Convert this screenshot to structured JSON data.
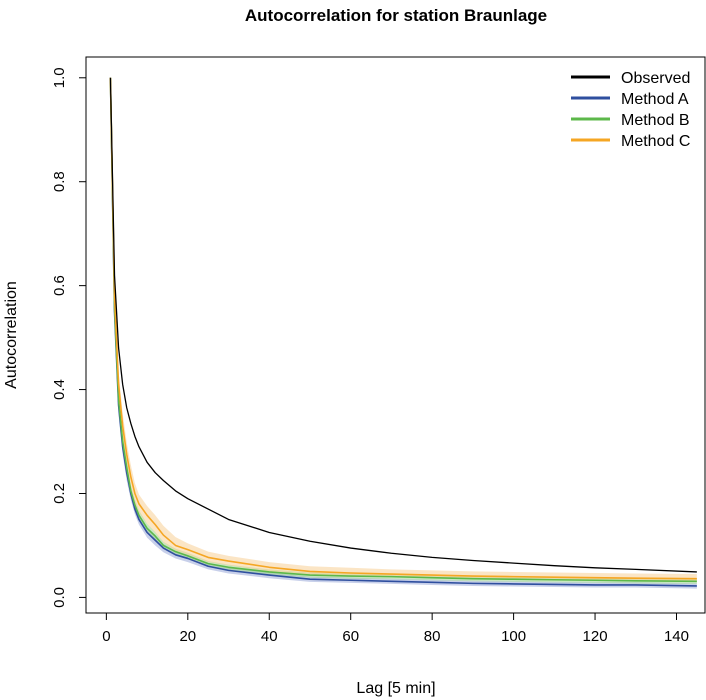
{
  "chart_data": {
    "type": "line",
    "title": "Autocorrelation for station Braunlage",
    "xlabel": "Lag [5 min]",
    "ylabel": "Autocorrelation",
    "xlim": [
      -5,
      147
    ],
    "ylim": [
      -0.03,
      1.04
    ],
    "xticks": [
      0,
      20,
      40,
      60,
      80,
      100,
      120,
      140
    ],
    "yticks": [
      0.0,
      0.2,
      0.4,
      0.6,
      0.8,
      1.0
    ],
    "xtick_labels": [
      "0",
      "20",
      "40",
      "60",
      "80",
      "100",
      "120",
      "140"
    ],
    "ytick_labels": [
      "0.0",
      "0.2",
      "0.4",
      "0.6",
      "0.8",
      "1.0"
    ],
    "legend_position": "top-right",
    "grid": false,
    "x": [
      1,
      2,
      3,
      4,
      5,
      6,
      7,
      8,
      10,
      12,
      14,
      17,
      20,
      25,
      30,
      40,
      50,
      60,
      70,
      80,
      90,
      100,
      110,
      120,
      130,
      145
    ],
    "series": [
      {
        "name": "Observed",
        "color": "#000000",
        "values": [
          1.0,
          0.62,
          0.48,
          0.41,
          0.365,
          0.335,
          0.31,
          0.29,
          0.26,
          0.24,
          0.225,
          0.205,
          0.19,
          0.17,
          0.15,
          0.125,
          0.108,
          0.095,
          0.085,
          0.077,
          0.071,
          0.066,
          0.061,
          0.057,
          0.054,
          0.049
        ]
      },
      {
        "name": "Method A",
        "color": "#2f4f9f",
        "band_color": "#9aaad9",
        "values": [
          1.0,
          0.55,
          0.37,
          0.29,
          0.24,
          0.2,
          0.17,
          0.15,
          0.125,
          0.11,
          0.095,
          0.082,
          0.075,
          0.06,
          0.052,
          0.043,
          0.035,
          0.033,
          0.031,
          0.029,
          0.027,
          0.026,
          0.025,
          0.024,
          0.024,
          0.022
        ],
        "lower": [
          1.0,
          0.53,
          0.35,
          0.275,
          0.225,
          0.188,
          0.16,
          0.14,
          0.115,
          0.1,
          0.087,
          0.075,
          0.068,
          0.054,
          0.046,
          0.037,
          0.03,
          0.028,
          0.026,
          0.024,
          0.022,
          0.021,
          0.02,
          0.019,
          0.019,
          0.017
        ],
        "upper": [
          1.0,
          0.57,
          0.39,
          0.305,
          0.255,
          0.212,
          0.18,
          0.16,
          0.135,
          0.12,
          0.103,
          0.089,
          0.082,
          0.066,
          0.058,
          0.049,
          0.04,
          0.038,
          0.036,
          0.034,
          0.032,
          0.031,
          0.03,
          0.029,
          0.029,
          0.027
        ]
      },
      {
        "name": "Method B",
        "color": "#5cb84a",
        "band_color": "#9fd68f",
        "values": [
          1.0,
          0.56,
          0.38,
          0.3,
          0.25,
          0.205,
          0.178,
          0.158,
          0.133,
          0.118,
          0.1,
          0.088,
          0.08,
          0.065,
          0.058,
          0.049,
          0.043,
          0.041,
          0.04,
          0.038,
          0.036,
          0.035,
          0.034,
          0.033,
          0.032,
          0.031
        ],
        "lower": [
          1.0,
          0.54,
          0.36,
          0.285,
          0.235,
          0.193,
          0.167,
          0.148,
          0.124,
          0.11,
          0.093,
          0.082,
          0.074,
          0.06,
          0.053,
          0.044,
          0.038,
          0.036,
          0.035,
          0.033,
          0.031,
          0.03,
          0.029,
          0.028,
          0.027,
          0.026
        ],
        "upper": [
          1.0,
          0.58,
          0.4,
          0.315,
          0.265,
          0.217,
          0.189,
          0.168,
          0.142,
          0.126,
          0.107,
          0.094,
          0.086,
          0.07,
          0.063,
          0.054,
          0.048,
          0.046,
          0.045,
          0.043,
          0.041,
          0.04,
          0.039,
          0.038,
          0.037,
          0.036
        ]
      },
      {
        "name": "Method C",
        "color": "#f5a623",
        "band_color": "#f8cf96",
        "values": [
          1.0,
          0.58,
          0.41,
          0.33,
          0.275,
          0.232,
          0.2,
          0.18,
          0.158,
          0.14,
          0.12,
          0.1,
          0.092,
          0.077,
          0.07,
          0.058,
          0.05,
          0.047,
          0.045,
          0.043,
          0.041,
          0.04,
          0.039,
          0.038,
          0.037,
          0.036
        ],
        "lower": [
          1.0,
          0.555,
          0.385,
          0.305,
          0.255,
          0.212,
          0.183,
          0.164,
          0.142,
          0.125,
          0.106,
          0.09,
          0.082,
          0.068,
          0.062,
          0.05,
          0.043,
          0.04,
          0.039,
          0.037,
          0.035,
          0.034,
          0.033,
          0.032,
          0.031,
          0.03
        ],
        "upper": [
          1.0,
          0.605,
          0.435,
          0.355,
          0.298,
          0.255,
          0.22,
          0.198,
          0.176,
          0.158,
          0.138,
          0.116,
          0.104,
          0.088,
          0.08,
          0.068,
          0.06,
          0.057,
          0.054,
          0.052,
          0.05,
          0.049,
          0.048,
          0.047,
          0.046,
          0.045
        ]
      }
    ]
  }
}
